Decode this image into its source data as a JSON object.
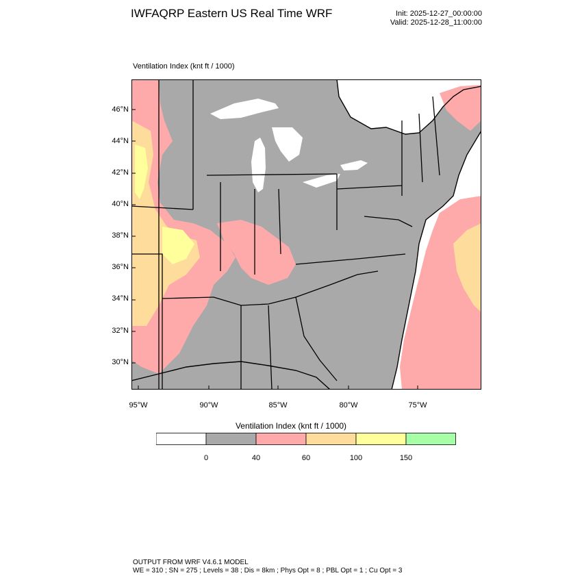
{
  "header": {
    "title": "IWFAQRP Eastern US Real Time WRF",
    "init": "Init: 2025-12-27_00:00:00",
    "valid": "Valid: 2025-12-28_11:00:00"
  },
  "map": {
    "subtitle": "Ventilation Index   (knt ft / 1000)",
    "lat_labels": [
      "46°N",
      "44°N",
      "42°N",
      "40°N",
      "38°N",
      "36°N",
      "34°N",
      "32°N",
      "30°N"
    ],
    "lon_labels": [
      "95°W",
      "90°W",
      "85°W",
      "80°W",
      "75°W"
    ],
    "colors": {
      "ocean": "#ffffff",
      "land_bg": "#a9a9a9",
      "low": "#a9a9a9",
      "mid": "#ffaaaa",
      "high": "#fddc9c",
      "top": "#ffff9c",
      "border": "#000000"
    }
  },
  "legend": {
    "title": "Ventilation Index  (knt ft / 1000)",
    "swatches": [
      "#ffffff",
      "#a9a9a9",
      "#ffaaaa",
      "#fddc9c",
      "#ffff9c",
      "#a6ffa6"
    ],
    "labels": [
      "0",
      "40",
      "60",
      "100",
      "150"
    ]
  },
  "footer": {
    "line1": "OUTPUT FROM WRF V4.6.1 MODEL",
    "line2": "WE = 310 ; SN = 275 ; Levels = 38 ; Dis = 8km ; Phys Opt = 8 ; PBL Opt = 1 ; Cu Opt = 3"
  }
}
